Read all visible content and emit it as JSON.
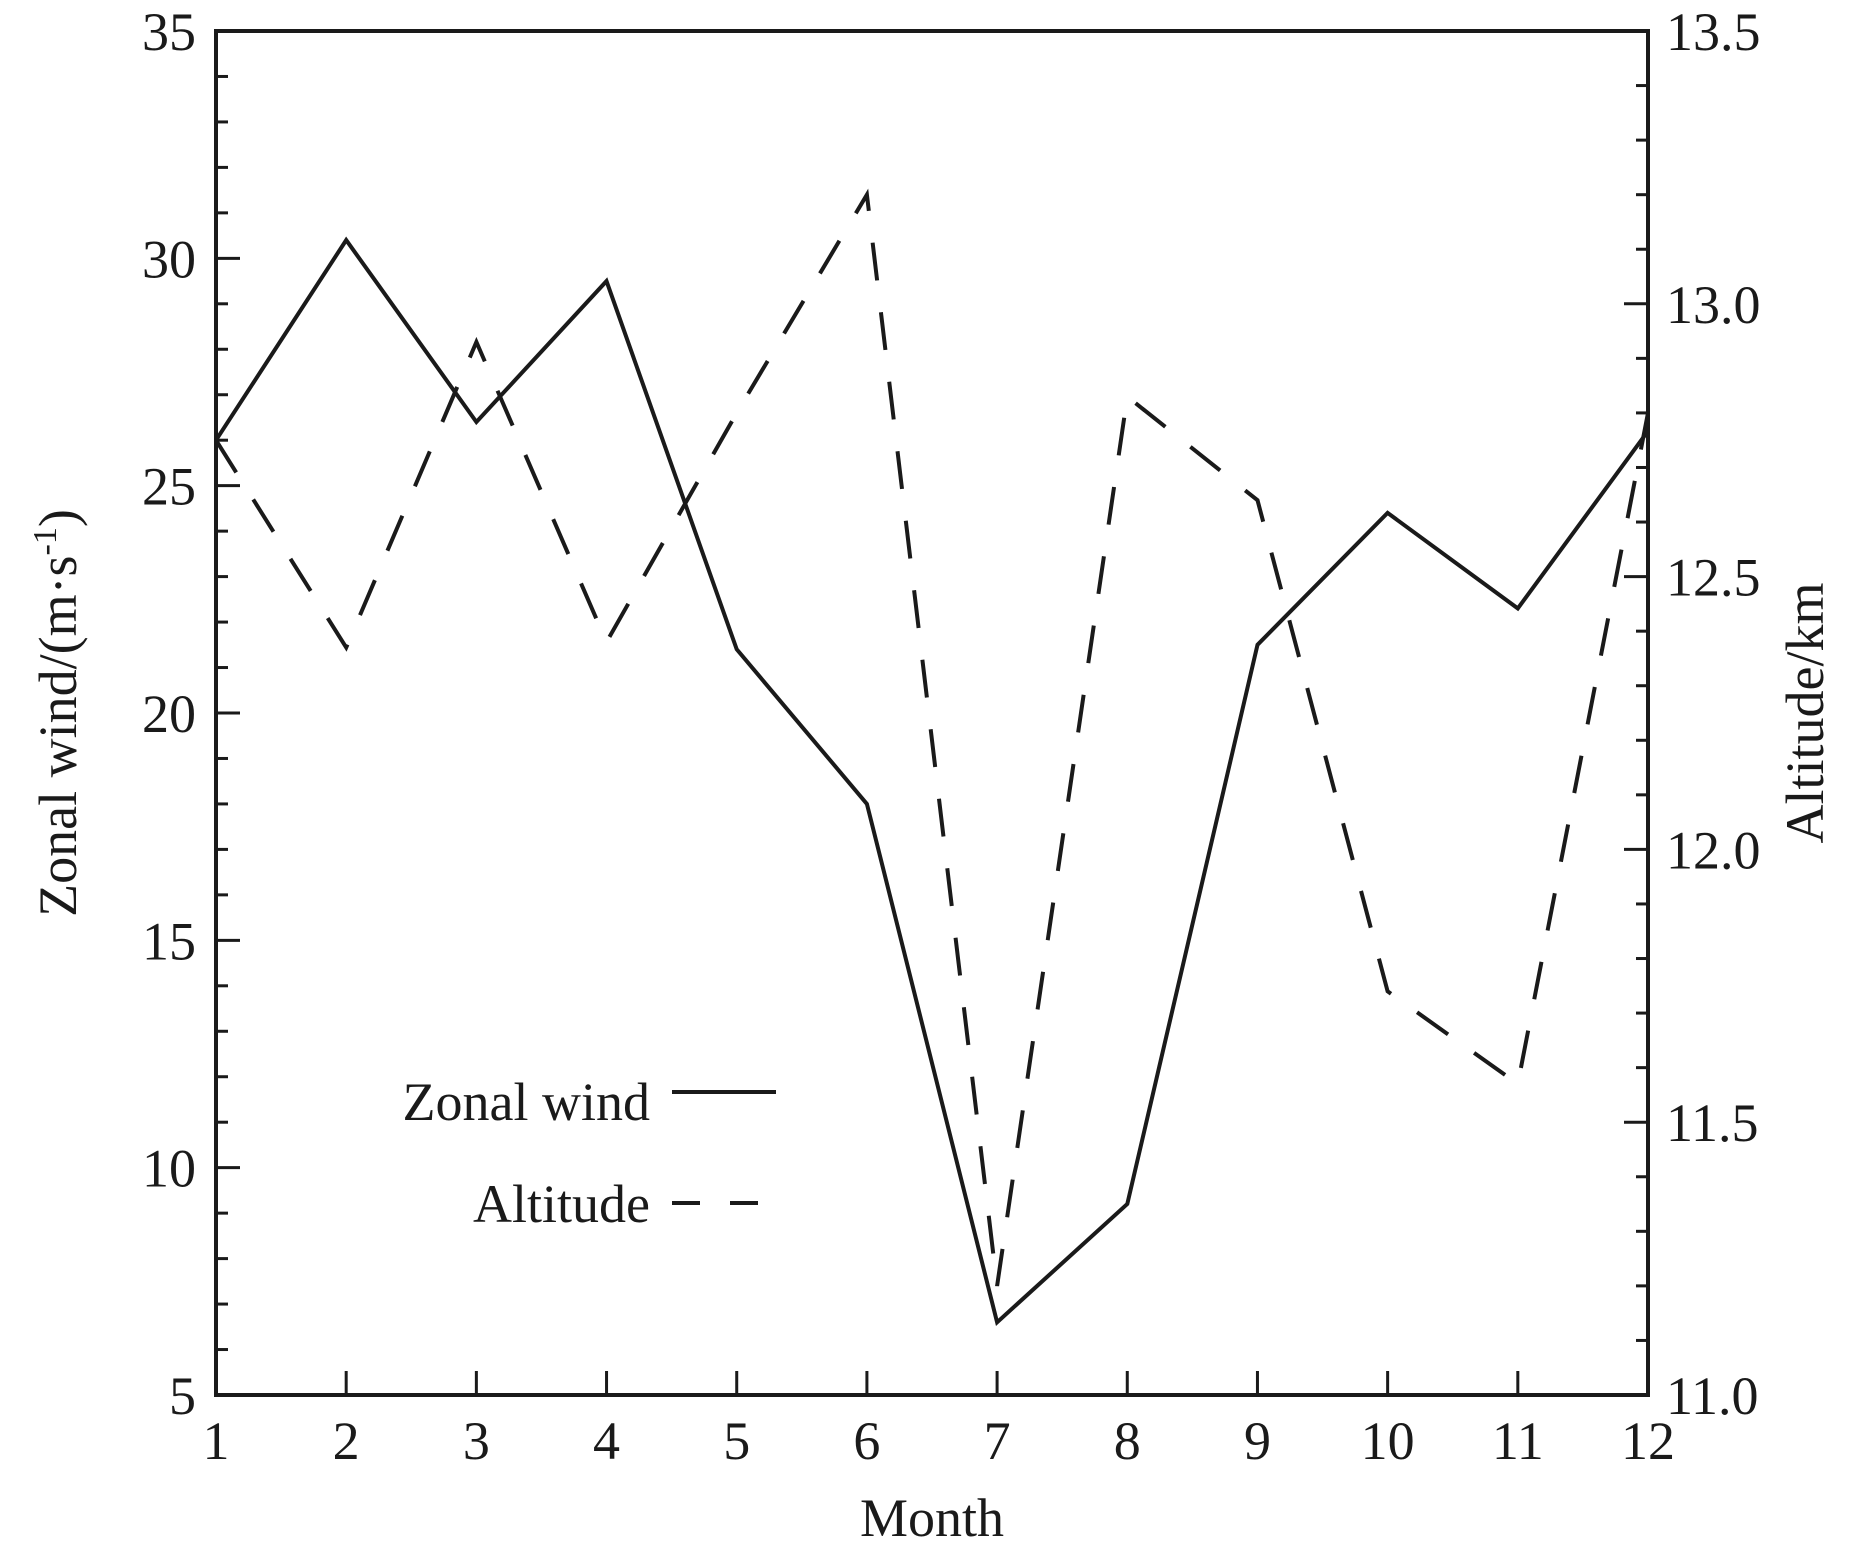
{
  "chart_data": {
    "type": "line",
    "title": "",
    "xlabel": "Month",
    "ylabel_left_main": "Zonal wind/(m·s",
    "ylabel_left_sup": "-1",
    "ylabel_left_close": ")",
    "ylabel_right": "Altitude/km",
    "x": [
      1,
      2,
      3,
      4,
      5,
      6,
      7,
      8,
      9,
      10,
      11,
      12
    ],
    "x_tick_labels": [
      "1",
      "2",
      "3",
      "4",
      "5",
      "6",
      "7",
      "8",
      "9",
      "10",
      "11",
      "12"
    ],
    "xlim": [
      1,
      12
    ],
    "ylim_left": [
      5,
      35
    ],
    "left_ticks": [
      5,
      10,
      15,
      20,
      25,
      30,
      35
    ],
    "left_tick_labels": [
      "5",
      "10",
      "15",
      "20",
      "25",
      "30",
      "35"
    ],
    "left_minor_step": 1,
    "ylim_right": [
      11.0,
      13.5
    ],
    "right_ticks": [
      11.0,
      11.5,
      12.0,
      12.5,
      13.0,
      13.5
    ],
    "right_tick_labels": [
      "11.0",
      "11.5",
      "12.0",
      "12.5",
      "13.0",
      "13.5"
    ],
    "right_minor_step": 0.1,
    "grid": false,
    "legend_position": "bottom-left",
    "series": [
      {
        "name": "Zonal wind",
        "axis": "left",
        "style": "solid",
        "color": "#1a1a1a",
        "values": [
          26.0,
          30.4,
          26.4,
          29.5,
          21.4,
          18.0,
          6.6,
          9.2,
          21.5,
          24.4,
          22.3,
          26.2
        ]
      },
      {
        "name": "Altitude",
        "axis": "right",
        "style": "dashed",
        "color": "#1a1a1a",
        "values": [
          12.75,
          12.37,
          12.93,
          12.38,
          12.8,
          13.2,
          11.2,
          12.83,
          12.64,
          11.74,
          11.57,
          12.8
        ]
      }
    ]
  }
}
